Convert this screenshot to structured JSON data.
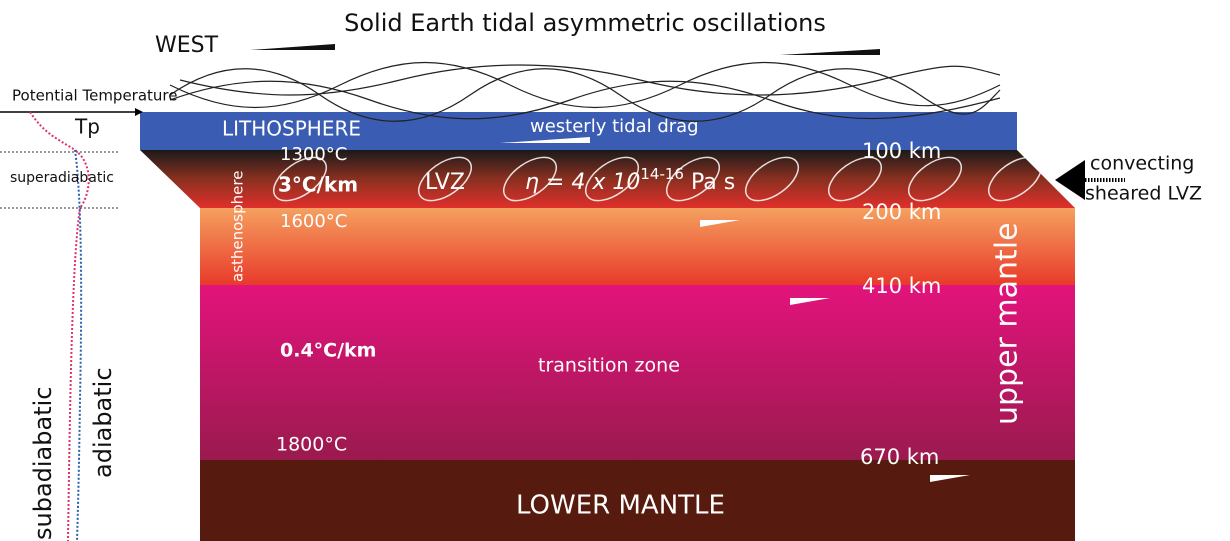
{
  "title": "Solid Earth tidal asymmetric oscillations",
  "west": "WEST",
  "potential_temperature": "Potential Temperature",
  "tp": "Tp",
  "lithosphere": "LITHOSPHERE",
  "tidal_drag": "westerly tidal drag",
  "temp_1300": "1300°C",
  "depth_100": "100 km",
  "convecting": "convecting",
  "sheared_lvz": "sheared LVZ",
  "superadiabatic": "superadiabatic",
  "gradient_3": "3°C/km",
  "lvz": "LVZ",
  "viscosity": {
    "base": "η = 4 x 10",
    "exponent": "14-16",
    "unit": " Pa s"
  },
  "asthenosphere": "asthenosphere",
  "temp_1600": "1600°C",
  "depth_200": "200 km",
  "depth_410": "410 km",
  "upper_mantle": "upper mantle",
  "gradient_04": "0.4°C/km",
  "transition_zone": "transition zone",
  "subadiabatic": "subadiabatic",
  "adiabatic": "adiabatic",
  "temp_1800": "1800°C",
  "depth_670": "670 km",
  "lower_mantle": "LOWER MANTLE"
}
